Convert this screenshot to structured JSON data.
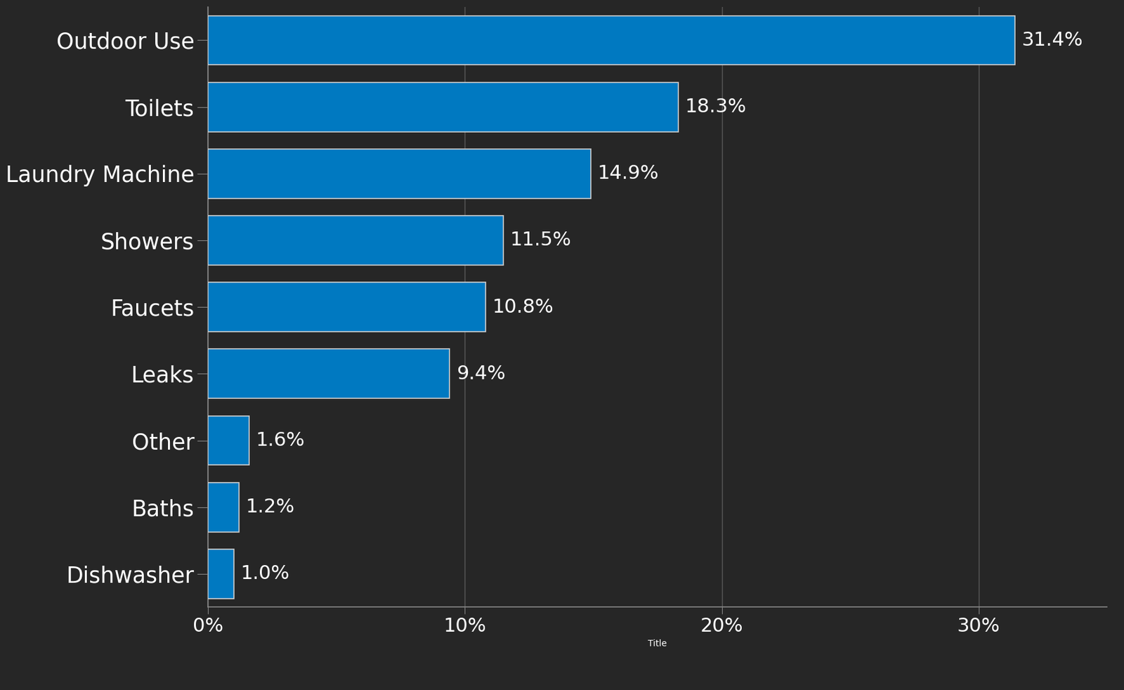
{
  "chart_data": {
    "type": "bar",
    "orientation": "horizontal",
    "x_label": "Title",
    "categories": [
      "Outdoor Use",
      "Toilets",
      "Laundry Machine",
      "Showers",
      "Faucets",
      "Leaks",
      "Other",
      "Baths",
      "Dishwasher"
    ],
    "values": [
      31.4,
      18.3,
      14.9,
      11.5,
      10.8,
      9.4,
      1.6,
      1.2,
      1.0
    ],
    "value_labels": [
      "31.4%",
      "18.3%",
      "14.9%",
      "11.5%",
      "10.8%",
      "9.4%",
      "1.6%",
      "1.2%",
      "1.0%"
    ],
    "color": "#0079c1",
    "xlim": [
      0,
      35
    ],
    "xticks": [
      {
        "value": 0,
        "label": "0%"
      },
      {
        "value": 10,
        "label": "10%"
      },
      {
        "value": 20,
        "label": "20%"
      },
      {
        "value": 30,
        "label": "30%"
      }
    ],
    "grid": true,
    "data_labels": true
  }
}
